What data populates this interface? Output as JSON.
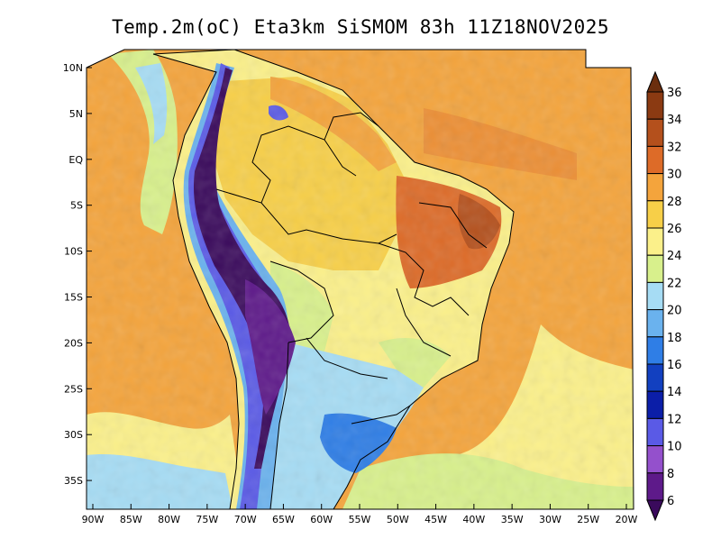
{
  "title": "Temp.2m(oC) Eta3km SiSMOM 83h 11Z18NOV2025",
  "lat_labels": [
    "10N",
    "5N",
    "EQ",
    "5S",
    "10S",
    "15S",
    "20S",
    "25S",
    "30S",
    "35S"
  ],
  "lon_labels": [
    "90W",
    "85W",
    "80W",
    "75W",
    "70W",
    "65W",
    "60W",
    "55W",
    "50W",
    "45W",
    "40W",
    "35W",
    "30W",
    "25W",
    "20W"
  ],
  "colorbar": {
    "labels": [
      "36",
      "34",
      "32",
      "30",
      "28",
      "26",
      "24",
      "22",
      "20",
      "18",
      "16",
      "14",
      "12",
      "10",
      "8",
      "6"
    ],
    "colors": [
      "#6b2e0e",
      "#8b3a12",
      "#b4501c",
      "#dd6b28",
      "#f4a43c",
      "#f7cf48",
      "#fbf08a",
      "#d8f08c",
      "#a6dcf4",
      "#6ab2ee",
      "#2f7ee6",
      "#1240c0",
      "#0b1ea8",
      "#5a5ae6",
      "#9450cc",
      "#5e1a8a",
      "#3a0a5c"
    ]
  }
}
